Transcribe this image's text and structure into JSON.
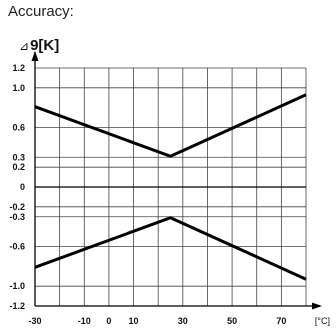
{
  "header": {
    "title": "Accuracy:"
  },
  "chart_data": {
    "type": "line",
    "title": "",
    "ylabel_symbol": "⊿",
    "ylabel": "9[K]",
    "xlabel": "[°C]",
    "xlim": [
      -30,
      80
    ],
    "ylim": [
      -1.2,
      1.2
    ],
    "grid": true,
    "x_ticks": [
      "-30",
      "-10",
      "0",
      "10",
      "30",
      "50",
      "70"
    ],
    "x_tick_values": [
      -30,
      -10,
      0,
      10,
      30,
      50,
      70
    ],
    "y_ticks": [
      "1.2",
      "1.0",
      "0.6",
      "0.3",
      "0.2",
      "0",
      "-0.2",
      "-0.3",
      "-0.6",
      "-1.0",
      "-1.2"
    ],
    "y_tick_values": [
      1.2,
      1.0,
      0.6,
      0.3,
      0.2,
      0,
      -0.2,
      -0.3,
      -0.6,
      -1.0,
      -1.2
    ],
    "series": [
      {
        "x": [
          -30,
          25,
          80
        ],
        "y": [
          0.81,
          0.31,
          0.93
        ]
      },
      {
        "x": [
          -30,
          25,
          80
        ],
        "y": [
          -0.81,
          -0.31,
          -0.93
        ]
      }
    ]
  }
}
